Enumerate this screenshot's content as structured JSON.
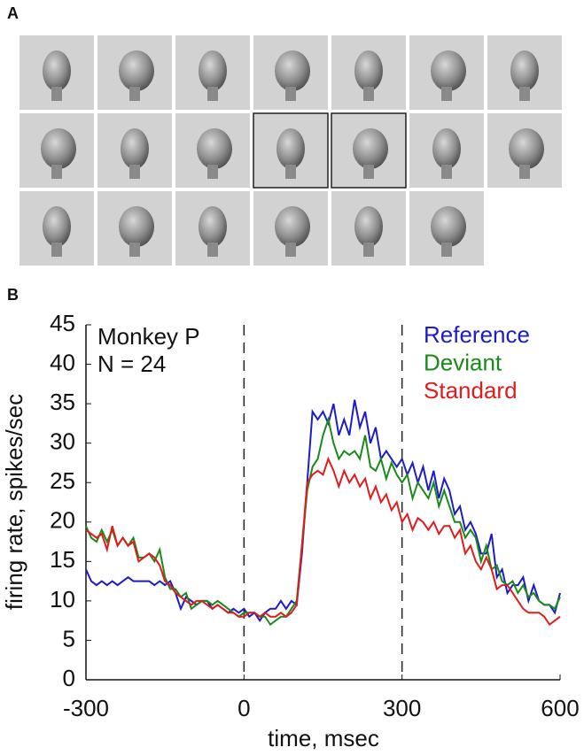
{
  "panel_labels": [
    "A",
    "B"
  ],
  "chart_data": {
    "type": "line",
    "x_label": "time, msec",
    "y_label": "firing rate, spikes/sec",
    "annotations": [
      "Monkey P",
      "N = 24"
    ],
    "legend": "top-right",
    "xlim": [
      -300,
      600
    ],
    "xticks": [
      -300,
      0,
      300,
      600
    ],
    "ylim": [
      0,
      45
    ],
    "yticks": [
      0,
      5,
      10,
      15,
      20,
      25,
      30,
      35,
      40,
      45
    ],
    "vlines": [
      0,
      300
    ],
    "x": [
      -300,
      -290,
      -280,
      -270,
      -260,
      -250,
      -240,
      -230,
      -220,
      -210,
      -200,
      -190,
      -180,
      -170,
      -160,
      -150,
      -140,
      -130,
      -120,
      -110,
      -100,
      -90,
      -80,
      -70,
      -60,
      -50,
      -40,
      -30,
      -20,
      -10,
      0,
      10,
      20,
      30,
      40,
      50,
      60,
      70,
      80,
      90,
      100,
      110,
      120,
      130,
      140,
      150,
      160,
      170,
      180,
      190,
      200,
      210,
      220,
      230,
      240,
      250,
      260,
      270,
      280,
      290,
      300,
      310,
      320,
      330,
      340,
      350,
      360,
      370,
      380,
      390,
      400,
      410,
      420,
      430,
      440,
      450,
      460,
      470,
      480,
      490,
      500,
      510,
      520,
      530,
      540,
      550,
      560,
      570,
      580,
      590,
      600
    ],
    "series": [
      {
        "name": "Reference",
        "color": "#1c1cc8",
        "values": [
          14,
          12.5,
          12,
          12.5,
          12,
          12.5,
          12,
          12.5,
          13,
          12.5,
          12.5,
          12.5,
          12.5,
          12,
          12.5,
          12,
          12.5,
          11,
          9,
          10.5,
          10,
          9.5,
          10,
          10,
          9,
          9.5,
          9,
          8.5,
          9,
          8.5,
          9,
          8,
          8.5,
          7.5,
          8.5,
          9,
          9,
          10,
          9,
          10,
          9.5,
          16,
          25,
          34,
          33,
          34,
          32.5,
          35,
          31,
          33,
          31,
          35.5,
          32,
          34,
          30,
          32,
          28,
          29,
          28,
          27,
          28,
          26,
          27.5,
          25,
          27,
          24,
          26.5,
          23,
          25.5,
          24,
          21,
          22,
          19,
          20,
          18.5,
          16,
          16,
          18.5,
          13,
          14,
          11,
          12,
          12,
          13,
          10,
          12,
          10,
          9.5,
          9.5,
          8.5,
          11
        ]
      },
      {
        "name": "Deviant",
        "color": "#1a8a1a",
        "values": [
          19.5,
          18,
          17.5,
          19,
          17.5,
          19,
          17,
          18,
          17,
          18,
          15.5,
          15.5,
          16,
          15,
          16.5,
          13,
          11.5,
          11.5,
          10.5,
          11,
          9,
          9.5,
          10,
          10,
          9.5,
          10,
          9.5,
          9,
          8.5,
          8,
          8.5,
          8.5,
          8.5,
          8,
          8,
          7,
          7.5,
          8,
          8,
          9,
          10,
          17,
          24,
          27,
          28,
          31,
          33,
          30,
          28,
          29,
          28.5,
          29,
          28,
          31,
          27,
          26.5,
          28,
          25.5,
          27.5,
          26,
          25,
          26,
          23,
          25,
          24,
          23,
          25,
          22,
          24,
          22,
          20,
          20,
          18,
          19,
          18,
          15,
          17,
          14,
          14.5,
          12.5,
          12,
          12.5,
          11,
          12,
          10.5,
          11,
          10,
          9.5,
          9.5,
          9,
          10.5
        ]
      },
      {
        "name": "Standard",
        "color": "#e01c1c",
        "values": [
          19,
          18.5,
          18,
          18.5,
          16.5,
          19.5,
          17,
          18,
          17,
          17.5,
          15,
          15.5,
          16,
          15.5,
          14.5,
          12.5,
          12,
          11,
          10.5,
          10,
          9.5,
          10,
          10,
          9.5,
          9,
          9.5,
          9,
          8.5,
          8.5,
          8,
          8,
          8.5,
          8.5,
          8,
          8.5,
          8,
          8,
          8.5,
          8,
          8.5,
          9.5,
          17,
          25,
          26,
          26.5,
          26,
          28,
          26.5,
          24.5,
          26.5,
          25,
          26,
          24.5,
          25.5,
          23,
          24.5,
          22.5,
          23.5,
          21.5,
          22.5,
          20,
          21,
          19,
          20.5,
          20,
          19,
          20,
          18.5,
          19.5,
          19.5,
          18,
          19,
          16,
          17,
          15,
          14,
          15.5,
          14,
          11.5,
          12,
          12,
          11,
          10,
          9,
          8.5,
          8.5,
          8.5,
          8,
          7,
          7.5,
          8
        ]
      }
    ]
  }
}
